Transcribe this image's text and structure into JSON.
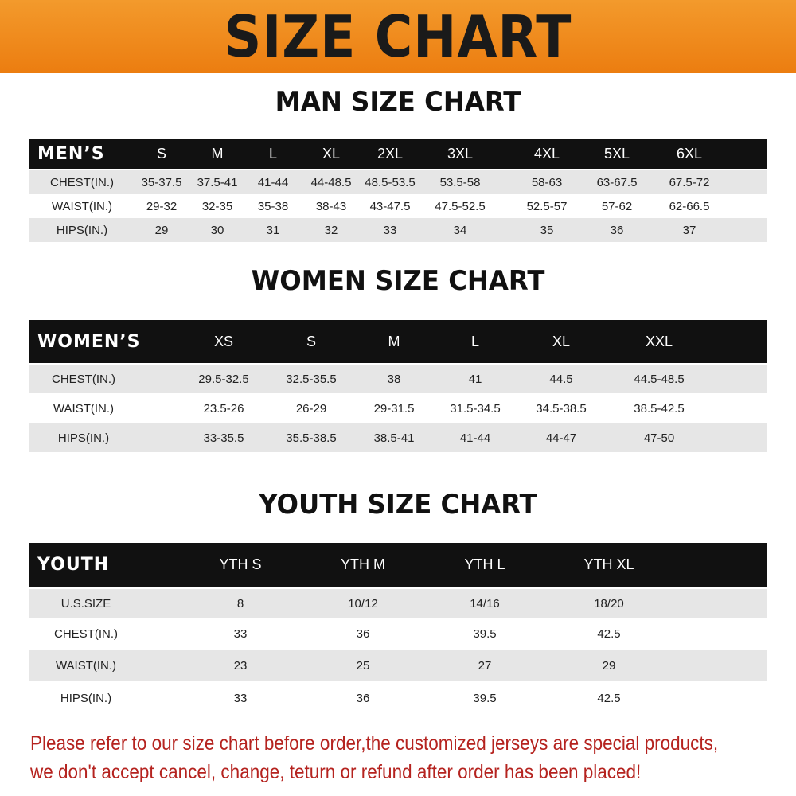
{
  "title": "SIZE CHART",
  "men": {
    "title": "MAN SIZE CHART",
    "header": [
      "MEN’S",
      "S",
      "M",
      "L",
      "XL",
      "2XL",
      "3XL",
      "4XL",
      "5XL",
      "6XL"
    ],
    "rows": [
      [
        "CHEST(IN.)",
        "35-37.5",
        "37.5-41",
        "41-44",
        "44-48.5",
        "48.5-53.5",
        "53.5-58",
        "58-63",
        "63-67.5",
        "67.5-72"
      ],
      [
        "WAIST(IN.)",
        "29-32",
        "32-35",
        "35-38",
        "38-43",
        "43-47.5",
        "47.5-52.5",
        "52.5-57",
        "57-62",
        "62-66.5"
      ],
      [
        "HIPS(IN.)",
        "29",
        "30",
        "31",
        "32",
        "33",
        "34",
        "35",
        "36",
        "37"
      ]
    ]
  },
  "women": {
    "title": "WOMEN SIZE CHART",
    "header": [
      "WOMEN’S",
      "XS",
      "S",
      "M",
      "L",
      "XL",
      "XXL"
    ],
    "rows": [
      [
        "CHEST(IN.)",
        "29.5-32.5",
        "32.5-35.5",
        "38",
        "41",
        "44.5",
        "44.5-48.5"
      ],
      [
        "WAIST(IN.)",
        "23.5-26",
        "26-29",
        "29-31.5",
        "31.5-34.5",
        "34.5-38.5",
        "38.5-42.5"
      ],
      [
        "HIPS(IN.)",
        "33-35.5",
        "35.5-38.5",
        "38.5-41",
        "41-44",
        "44-47",
        "47-50"
      ]
    ]
  },
  "youth": {
    "title": "YOUTH SIZE CHART",
    "header": [
      "YOUTH",
      "YTH S",
      "YTH M",
      "YTH L",
      "YTH XL"
    ],
    "rows": [
      [
        "U.S.SIZE",
        "8",
        "10/12",
        "14/16",
        "18/20"
      ],
      [
        "CHEST(IN.)",
        "33",
        "36",
        "39.5",
        "42.5"
      ],
      [
        "WAIST(IN.)",
        "23",
        "25",
        "27",
        "29"
      ],
      [
        "HIPS(IN.)",
        "33",
        "36",
        "39.5",
        "42.5"
      ]
    ]
  },
  "notice": [
    "Please refer to our size chart before order,the customized jerseys are special products,",
    "we don't accept cancel, change, teturn or refund after order has been placed!"
  ],
  "colors": {
    "banner": "#ec7d10",
    "header_row": "#111111",
    "stripe": "#e6e6e6",
    "notice": "#b5231f"
  }
}
